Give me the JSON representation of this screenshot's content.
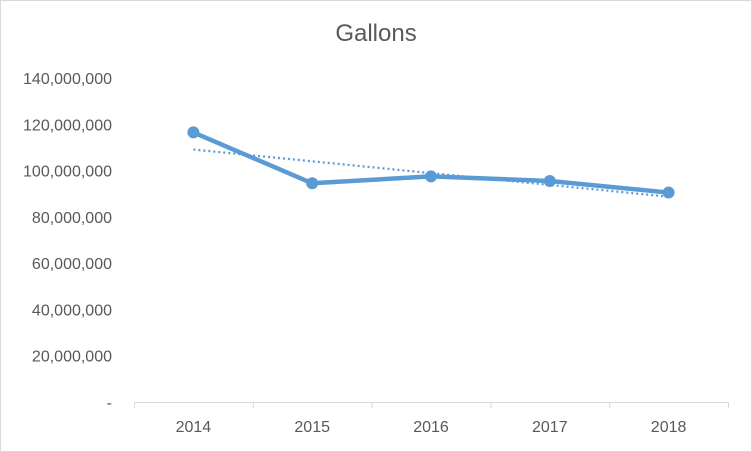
{
  "chart_data": {
    "type": "line",
    "title": "Gallons",
    "xlabel": "",
    "ylabel": "",
    "categories": [
      "2014",
      "2015",
      "2016",
      "2017",
      "2018"
    ],
    "series": [
      {
        "values": [
          116500000,
          94500000,
          97500000,
          95500000,
          90500000
        ],
        "color": "#5b9bd5",
        "markers": true
      }
    ],
    "trendline": {
      "kind": "linear",
      "style": "dotted",
      "color": "#5b9bd5"
    },
    "ylim": [
      0,
      140000000
    ],
    "y_ticks": [
      0,
      20000000,
      40000000,
      60000000,
      80000000,
      100000000,
      120000000,
      140000000
    ],
    "y_tick_labels": [
      "-",
      "20,000,000",
      "40,000,000",
      "60,000,000",
      "80,000,000",
      "100,000,000",
      "120,000,000",
      "140,000,000"
    ],
    "grid": false,
    "legend": "none"
  }
}
